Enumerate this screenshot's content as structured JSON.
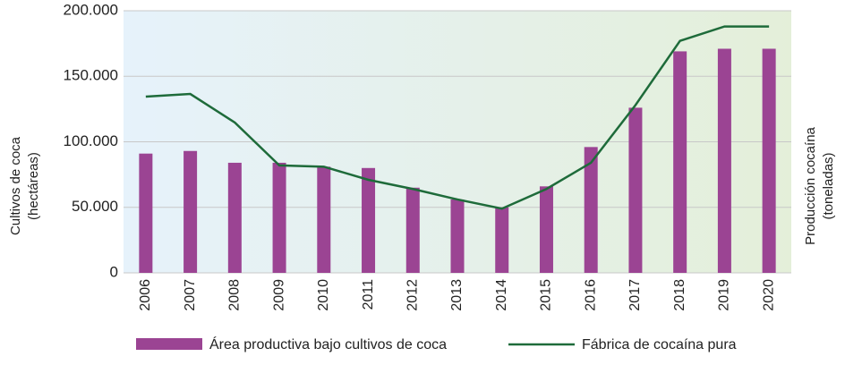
{
  "chart_data": {
    "type": "bar_line",
    "categories": [
      "2006",
      "2007",
      "2008",
      "2009",
      "2010",
      "2011",
      "2012",
      "2013",
      "2014",
      "2015",
      "2016",
      "2017",
      "2018",
      "2019",
      "2020"
    ],
    "series": [
      {
        "name": "Área productiva bajo cultivos de coca",
        "color": "#9b4493",
        "type": "bar",
        "values": [
          91000,
          93000,
          84000,
          84000,
          81000,
          80000,
          65000,
          56000,
          50000,
          66000,
          96000,
          126000,
          169000,
          171000,
          171000
        ]
      },
      {
        "name": "Fábrica de cocaína pura",
        "color": "#1e6b3a",
        "type": "line",
        "values": [
          134500,
          136500,
          114700,
          82000,
          81000,
          71000,
          64000,
          56000,
          49000,
          64000,
          84000,
          128000,
          177000,
          188000,
          188000
        ]
      }
    ],
    "ylim": [
      0,
      200000
    ],
    "yticks": [
      0,
      {
        "value": 50000,
        "label": "50.000"
      },
      {
        "value": 100000,
        "label": "100.000"
      },
      {
        "value": 150000,
        "label": "150.000"
      },
      {
        "value": 200000,
        "label": "200.000"
      }
    ],
    "ylabel": [
      "Cultivos de coca",
      "(hectáreas)"
    ],
    "y2label": [
      "Producción cocaína",
      "(toneladas)"
    ],
    "grid": true
  }
}
